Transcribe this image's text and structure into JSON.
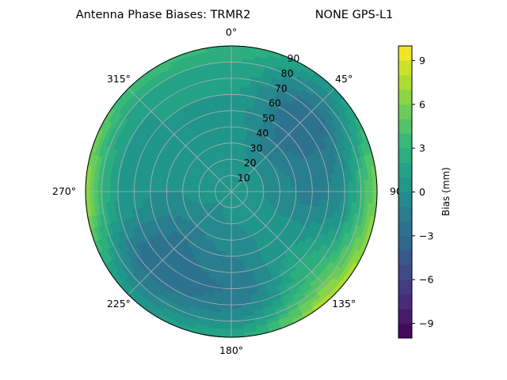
{
  "chart_data": {
    "type": "contour",
    "projection": "polar",
    "title_left": "Antenna Phase Biases: TRMR2",
    "title_right": "NONE GPS-L1",
    "theta_zero": "north",
    "theta_direction": "clockwise",
    "theta_tick_labels": [
      "0°",
      "45°",
      "90°",
      "135°",
      "180°",
      "225°",
      "270°",
      "315°"
    ],
    "r_tick_labels": [
      "10",
      "20",
      "30",
      "40",
      "50",
      "60",
      "70",
      "80",
      "90"
    ],
    "rlim": [
      0,
      90
    ],
    "grid": true,
    "colormap": "viridis",
    "levels": {
      "min": -10,
      "max": 10,
      "step": 1
    },
    "colorbar": {
      "label": "Bias (mm)",
      "ticks": [
        "−9",
        "−6",
        "−3",
        "0",
        "3",
        "6",
        "9"
      ],
      "tick_values": [
        -9,
        -6,
        -3,
        0,
        3,
        6,
        9
      ]
    },
    "azimuths_deg": [
      0,
      45,
      90,
      135,
      180,
      225,
      270,
      315
    ],
    "zenith_deg": [
      0,
      10,
      20,
      30,
      40,
      50,
      60,
      70,
      80,
      90
    ],
    "values_mm": [
      [
        0,
        0.5,
        0.5,
        0.5,
        0.5,
        0.5,
        1,
        1.5,
        2,
        3
      ],
      [
        0,
        0.3,
        0,
        -1,
        -2,
        -2.5,
        -3,
        -2.5,
        -1,
        1
      ],
      [
        0,
        0.3,
        0,
        -0.5,
        -1,
        -1.5,
        -1,
        0,
        3,
        6
      ],
      [
        0,
        0.5,
        0.5,
        0.5,
        0.5,
        1,
        2,
        3,
        5,
        8
      ],
      [
        0,
        0.3,
        0,
        -0.5,
        -1,
        -1.5,
        -2,
        -1.5,
        0,
        2
      ],
      [
        0,
        0,
        -0.5,
        -1,
        -2,
        -2.5,
        -3,
        -2.5,
        -1,
        1
      ],
      [
        0,
        0.5,
        0.5,
        0,
        0,
        0,
        0.5,
        1,
        3,
        7
      ],
      [
        0,
        0.5,
        0.5,
        0.5,
        0.5,
        0.5,
        1,
        1,
        2,
        4
      ]
    ]
  }
}
